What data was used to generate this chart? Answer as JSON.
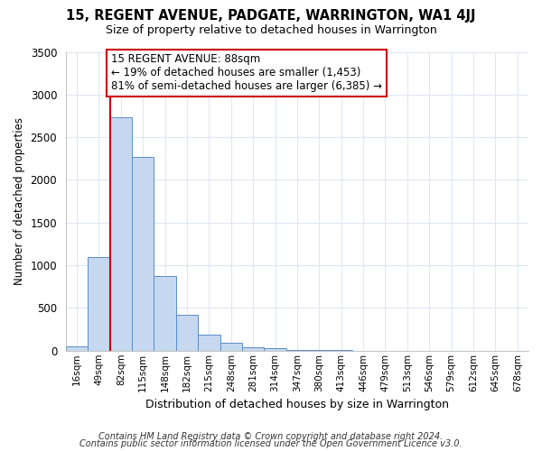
{
  "title": "15, REGENT AVENUE, PADGATE, WARRINGTON, WA1 4JJ",
  "subtitle": "Size of property relative to detached houses in Warrington",
  "xlabel": "Distribution of detached houses by size in Warrington",
  "ylabel": "Number of detached properties",
  "categories": [
    "16sqm",
    "49sqm",
    "82sqm",
    "115sqm",
    "148sqm",
    "182sqm",
    "215sqm",
    "248sqm",
    "281sqm",
    "314sqm",
    "347sqm",
    "380sqm",
    "413sqm",
    "446sqm",
    "479sqm",
    "513sqm",
    "546sqm",
    "579sqm",
    "612sqm",
    "645sqm",
    "678sqm"
  ],
  "values": [
    50,
    1100,
    2730,
    2270,
    870,
    420,
    185,
    95,
    40,
    25,
    10,
    5,
    3,
    1,
    0,
    0,
    0,
    0,
    0,
    0,
    0
  ],
  "bar_color": "#c5d8f0",
  "bar_edge_color": "#5b8ec4",
  "property_bin_index": 2,
  "annotation_line1": "15 REGENT AVENUE: 88sqm",
  "annotation_line2": "← 19% of detached houses are smaller (1,453)",
  "annotation_line3": "81% of semi-detached houses are larger (6,385) →",
  "annotation_box_edge_color": "#cc0000",
  "vline_color": "#cc0000",
  "ylim": [
    0,
    3500
  ],
  "yticks": [
    0,
    500,
    1000,
    1500,
    2000,
    2500,
    3000,
    3500
  ],
  "footer1": "Contains HM Land Registry data © Crown copyright and database right 2024.",
  "footer2": "Contains public sector information licensed under the Open Government Licence v3.0.",
  "bg_color": "#ffffff",
  "plot_bg_color": "#ffffff",
  "grid_color": "#dde8f5"
}
